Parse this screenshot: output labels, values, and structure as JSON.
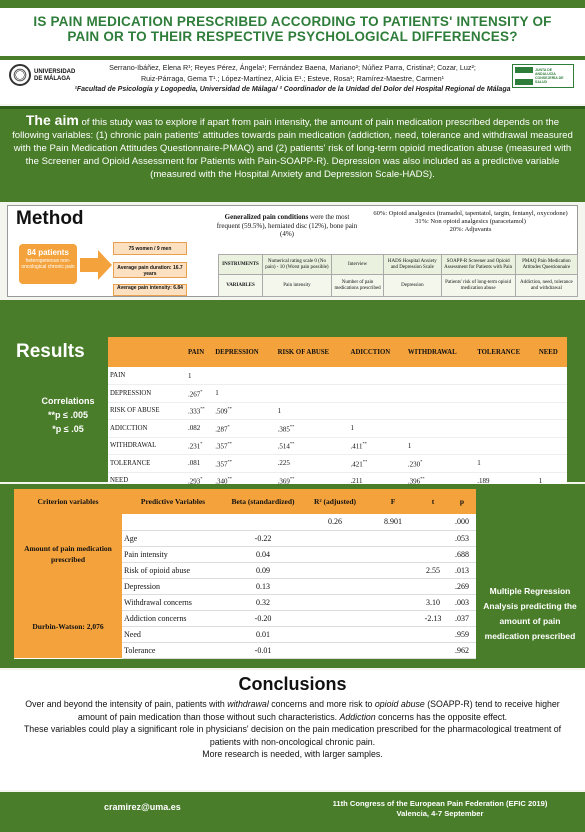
{
  "title": {
    "line1": "IS PAIN MEDICATION PRESCRIBED ACCORDING TO PATIENTS' INTENSITY OF",
    "line2": "PAIN OR TO THEIR RESPECTIVE PSYCHOLOGICAL DIFFERENCES?"
  },
  "authors": {
    "line1": "Serrano-Ibáñez, Elena R¹; Reyes Pérez, Ángela¹; Fernández Baena, Mariano²; Núñez Parra, Cristina²; Cozar, Luz²;",
    "line2": "Ruiz-Párraga, Gema T¹.; López-Martínez, Alicia E¹.; Esteve, Rosa¹; Ramírez-Maestre, Carmen¹",
    "affiliation": "¹Facultad de Psicología y Logopedia, Universidad de Málaga/ ² Coordinador de la Unidad del Dolor del Hospital Regional de Málaga"
  },
  "logos": {
    "left_text": "UNIVERSIDAD DE MÁLAGA",
    "right_text": "JUNTA DE ANDALUCÍA CONSEJERÍA DE SALUD"
  },
  "aim": {
    "lead": "The aim",
    "text": " of this study was to explore if apart from pain intensity, the amount of pain medication prescribed depends on the following variables: (1) chronic pain patients' attitudes towards pain medication (addiction, need, tolerance and withdrawal measured with the Pain Medication Attitudes Questionnaire-PMAQ) and (2) patients' risk of long-term opioid medication abuse (measured with the Screener and Opioid Assessment for Patients with Pain-SOAPP-R). Depression was also included as a predictive variable (measured with the Hospital Anxiety and Depression Scale-HADS)."
  },
  "method": {
    "heading": "Method",
    "patients_count": "84 patients",
    "patients_desc": "heterogeneous non-oncological chronic pain",
    "box1": "75 women / 9 men",
    "box2": "Average pain duration: 16.7 years",
    "box3": "Average pain intensity: 6.84",
    "gpc_bold": "Generalized pain conditions",
    "gpc_rest": " were the most frequent (59.5%), herniated disc (12%), bone pain (4%)",
    "op1": "60%: Opioid analgesics (tramadol, tapentatol, targin, fentanyl, oxycodone)",
    "op2": "31%: Non opioid analgesics (paracetamol)",
    "op3": "20%: Adjuvants",
    "instruments": {
      "row1_label": "INSTRUMENTS",
      "row2_label": "VARIABLES",
      "cols": [
        {
          "inst": "Numerical rating scale 0 (No pain) - 10 (Worst pain possible)",
          "var": "Pain intensity"
        },
        {
          "inst": "Interview",
          "var": "Number of pain medications prescribed"
        },
        {
          "inst": "HADS Hospital Anxiety and Depression Scale",
          "var": "Depression"
        },
        {
          "inst": "SOAPP-R Screener and Opioid Assessment for Patients with Pain",
          "var": "Patients' risk of long-term opioid medication abuse"
        },
        {
          "inst": "PMAQ Pain Medication Attitudes Questionnaire",
          "var": "Addiction, need, tolerance and withdrawal"
        }
      ]
    }
  },
  "results": {
    "heading": "Results",
    "correlations_label": "Correlations",
    "sig1": "**p ≤ .005",
    "sig2": "*p ≤ .05",
    "headers": [
      "PAIN",
      "DEPRESSION",
      "RISK OF ABUSE",
      "ADICCTION",
      "WITHDRAWAL",
      "TOLERANCE",
      "NEED"
    ],
    "rows": [
      {
        "label": "PAIN",
        "cells": [
          "1",
          "",
          "",
          "",
          "",
          "",
          ""
        ]
      },
      {
        "label": "DEPRESSION",
        "cells": [
          ".267*",
          "1",
          "",
          "",
          "",
          "",
          ""
        ]
      },
      {
        "label": "RISK OF ABUSE",
        "cells": [
          ".333**",
          ".509**",
          "1",
          "",
          "",
          "",
          ""
        ]
      },
      {
        "label": "ADICCTION",
        "cells": [
          ".082",
          ".287*",
          ".385**",
          "1",
          "",
          "",
          ""
        ]
      },
      {
        "label": "WITHDRAWAL",
        "cells": [
          ".231*",
          ".357**",
          ".514**",
          ".411**",
          "1",
          "",
          ""
        ]
      },
      {
        "label": "TOLERANCE",
        "cells": [
          ".081",
          ".357**",
          ".225",
          ".421**",
          ".230*",
          "1",
          ""
        ]
      },
      {
        "label": "NEED",
        "cells": [
          ".293*",
          ".340**",
          ".369**",
          ".211",
          ".396**",
          ".189",
          "1"
        ]
      }
    ]
  },
  "regression": {
    "headers": {
      "crit": "Criterion variables",
      "pred": "Predictive Variables",
      "beta": "Beta (standardized)",
      "r2": "R² (adjusted)",
      "f": "F",
      "t": "t",
      "p": "p"
    },
    "criterion": "Amount of pain medication prescribed",
    "durbin": "Durbin-Watson: 2,076",
    "model_row": {
      "r2": "0.26",
      "f": "8.901",
      "p": ".000"
    },
    "rows": [
      {
        "pred": "Age",
        "beta": "-0.22",
        "t": "",
        "p": ".053"
      },
      {
        "pred": "Pain intensity",
        "beta": "0.04",
        "t": "",
        "p": ".688"
      },
      {
        "pred": "Risk of opioid abuse",
        "beta": "0.09",
        "t": "2.55",
        "p": ".013"
      },
      {
        "pred": "Depression",
        "beta": "0.13",
        "t": "",
        "p": ".269"
      },
      {
        "pred": "Withdrawal concerns",
        "beta": "0.32",
        "t": "3.10",
        "p": ".003"
      },
      {
        "pred": "Addiction concerns",
        "beta": "-0.20",
        "t": "-2.13",
        "p": ".037"
      },
      {
        "pred": "Need",
        "beta": "0.01",
        "t": "",
        "p": ".959"
      },
      {
        "pred": "Tolerance",
        "beta": "-0.01",
        "t": "",
        "p": ".962"
      }
    ],
    "side_label": "Multiple Regression Analysis predicting the amount of pain medication prescribed"
  },
  "conclusions": {
    "heading": "Conclusions",
    "p1a": "Over and beyond the intensity of pain, patients with ",
    "p1b": "withdrawal",
    "p1c": " concerns and more risk to ",
    "p1d": "opioid abuse",
    "p1e": " (SOAPP-R) tend to receive higher amount of pain medication than those without such characteristics. ",
    "p1f": "Addiction",
    "p1g": " concerns has the opposite effect.",
    "p2": "These variables could play a significant role in physicians' decision on the pain medication prescribed for the pharmacological treatment of patients with non-oncological chronic pain.",
    "p3": "More research is needed, with larger samples."
  },
  "footer": {
    "email": "cramirez@uma.es",
    "conf1": "11th Congress of the European Pain Federation (EFIC 2019)",
    "conf2": "Valencia, 4-7 September"
  }
}
